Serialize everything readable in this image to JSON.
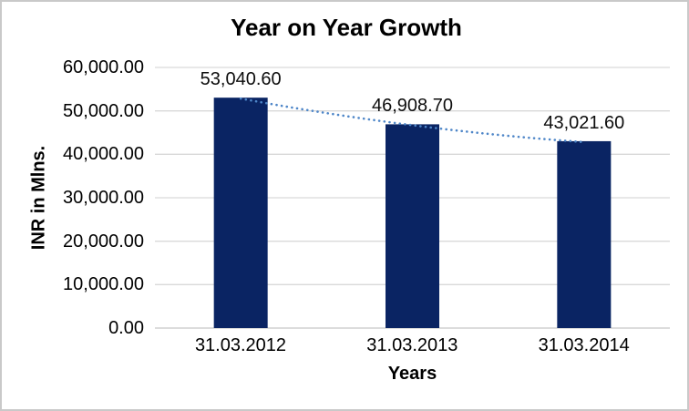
{
  "chart_data": {
    "type": "bar",
    "title": "Year on Year Growth",
    "xlabel": "Years",
    "ylabel": "INR in Mlns.",
    "categories": [
      "31.03.2012",
      "31.03.2013",
      "31.03.2014"
    ],
    "values": [
      53040.6,
      46908.7,
      43021.6
    ],
    "data_labels": [
      "53,040.60",
      "46,908.70",
      "43,021.60"
    ],
    "ylim": [
      0,
      60000
    ],
    "y_tick_step": 10000,
    "y_ticks": [
      {
        "value": 0,
        "label": "0.00"
      },
      {
        "value": 10000,
        "label": "10,000.00"
      },
      {
        "value": 20000,
        "label": "20,000.00"
      },
      {
        "value": 30000,
        "label": "30,000.00"
      },
      {
        "value": 40000,
        "label": "40,000.00"
      },
      {
        "value": 50000,
        "label": "50,000.00"
      },
      {
        "value": 60000,
        "label": "60,000.00"
      }
    ],
    "grid": true,
    "legend": "none",
    "trendline": {
      "style": "dotted",
      "through_values": [
        53040.6,
        46908.7,
        43021.6
      ]
    },
    "colors": {
      "bar_fill": "#0a2463",
      "trendline": "#4e86c8",
      "gridline": "#d9d9d9",
      "axis_line": "#c6c6c6",
      "frame_border": "#c9c9c9",
      "text": "#000000"
    }
  }
}
